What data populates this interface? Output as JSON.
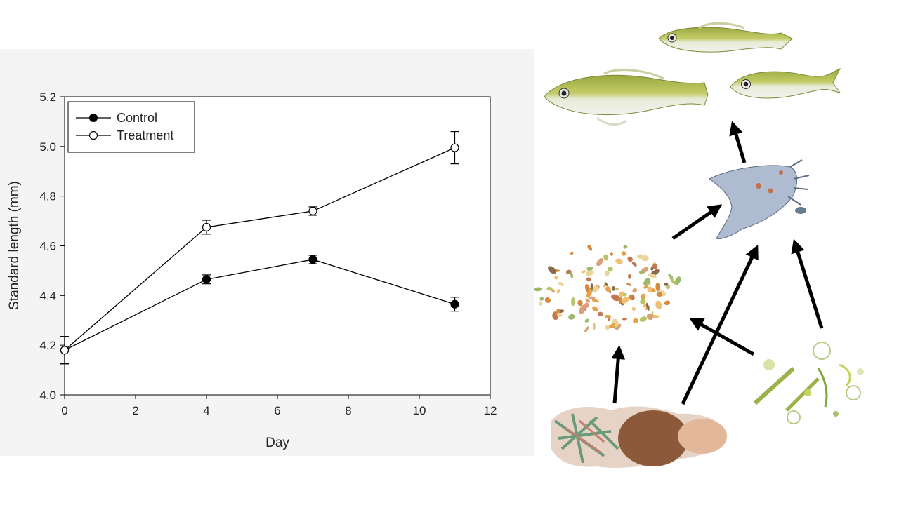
{
  "chart_data": {
    "type": "line",
    "xlabel": "Day",
    "ylabel": "Standard length (mm)",
    "xlim": [
      0,
      12
    ],
    "ylim": [
      4.0,
      5.2
    ],
    "xticks": [
      0,
      2,
      4,
      6,
      8,
      10,
      12
    ],
    "yticks": [
      4.0,
      4.2,
      4.4,
      4.6,
      4.8,
      5.0,
      5.2
    ],
    "ytick_labels": [
      "4.0",
      "4.2",
      "4.4",
      "4.6",
      "4.8",
      "5.0",
      "5.2"
    ],
    "grid": false,
    "legend_position": "top-left",
    "series": [
      {
        "name": "Control",
        "marker": "filled-circle",
        "x": [
          0,
          4,
          7,
          11
        ],
        "y": [
          4.18,
          4.465,
          4.545,
          4.365
        ],
        "error": [
          0.055,
          0.018,
          0.017,
          0.028
        ]
      },
      {
        "name": "Treatment",
        "marker": "open-circle",
        "x": [
          0,
          4,
          7,
          11
        ],
        "y": [
          4.18,
          4.675,
          4.74,
          4.995
        ],
        "error": [
          0.055,
          0.028,
          0.017,
          0.065
        ]
      }
    ]
  },
  "food_web": {
    "nodes": [
      "fish-larvae",
      "zooplankton-copepod",
      "protozoa-bacteria",
      "detritus",
      "phytoplankton"
    ],
    "colors": {
      "fish_body": "#b8c25a",
      "fish_belly": "#eef0e4",
      "copepod": "#a9b8cc",
      "arrow": "#000000"
    }
  }
}
